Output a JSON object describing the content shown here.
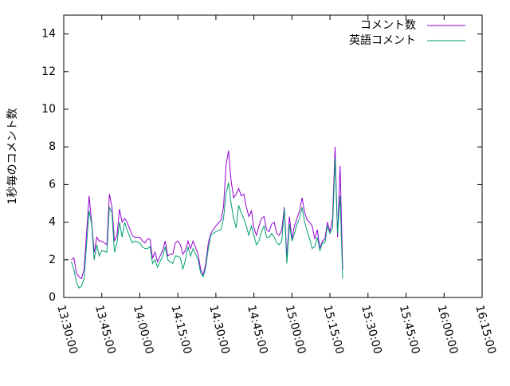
{
  "chart_data": {
    "type": "line",
    "ylabel": "1秒毎のコメント数",
    "x": [
      "13:33:00",
      "13:34:00",
      "13:35:00",
      "13:36:00",
      "13:37:00",
      "13:38:00",
      "13:40:00",
      "13:41:00",
      "13:42:00",
      "13:43:00",
      "13:44:00",
      "13:45:00",
      "13:47:00",
      "13:48:00",
      "13:49:00",
      "13:50:00",
      "13:51:00",
      "13:52:00",
      "13:53:00",
      "13:54:00",
      "13:55:00",
      "13:57:00",
      "13:58:00",
      "14:00:00",
      "14:01:00",
      "14:02:00",
      "14:03:00",
      "14:04:00",
      "14:05:00",
      "14:06:00",
      "14:07:00",
      "14:09:00",
      "14:10:00",
      "14:11:00",
      "14:12:00",
      "14:13:00",
      "14:14:00",
      "14:15:00",
      "14:16:00",
      "14:17:00",
      "14:18:00",
      "14:19:00",
      "14:20:00",
      "14:21:00",
      "14:23:00",
      "14:24:00",
      "14:25:00",
      "14:26:00",
      "14:27:00",
      "14:28:00",
      "14:29:00",
      "14:30:00",
      "14:32:00",
      "14:33:00",
      "14:34:00",
      "14:35:00",
      "14:36:00",
      "14:37:00",
      "14:38:00",
      "14:39:00",
      "14:40:00",
      "14:41:00",
      "14:42:00",
      "14:43:00",
      "14:44:00",
      "14:45:00",
      "14:46:00",
      "14:47:00",
      "14:48:00",
      "14:49:00",
      "14:50:00",
      "14:51:00",
      "14:52:00",
      "14:53:00",
      "14:54:00",
      "14:55:00",
      "14:56:00",
      "14:57:00",
      "14:58:00",
      "14:59:00",
      "15:00:00",
      "15:01:00",
      "15:02:00",
      "15:03:00",
      "15:04:00",
      "15:05:00",
      "15:06:00",
      "15:07:00",
      "15:08:00",
      "15:09:00",
      "15:10:00",
      "15:11:00",
      "15:12:00",
      "15:13:00",
      "15:14:00",
      "15:15:00",
      "15:16:00",
      "15:17:00",
      "15:18:00",
      "15:19:00",
      "15:20:00"
    ],
    "series": [
      {
        "name": "コメント数",
        "color": "#9400d3",
        "values": [
          2.0,
          2.1,
          1.3,
          1.1,
          1.0,
          1.5,
          5.4,
          4.0,
          2.4,
          3.2,
          3.0,
          3.0,
          2.8,
          5.5,
          4.8,
          3.0,
          3.3,
          4.7,
          4.0,
          4.2,
          4.0,
          3.3,
          3.2,
          3.2,
          3.0,
          2.9,
          3.1,
          3.1,
          2.1,
          2.4,
          1.9,
          2.5,
          3.0,
          2.2,
          2.3,
          2.3,
          2.9,
          3.0,
          2.8,
          2.3,
          2.5,
          3.0,
          2.6,
          3.0,
          2.3,
          1.5,
          1.2,
          1.8,
          2.9,
          3.4,
          3.6,
          3.8,
          4.1,
          4.8,
          7.0,
          7.8,
          6.2,
          5.3,
          5.5,
          5.8,
          5.4,
          5.5,
          4.8,
          4.3,
          4.6,
          3.7,
          3.3,
          3.8,
          4.2,
          4.3,
          3.6,
          3.5,
          3.9,
          4.0,
          3.4,
          3.3,
          3.6,
          4.8,
          2.1,
          4.3,
          3.1,
          3.8,
          4.2,
          4.6,
          5.3,
          4.5,
          4.1,
          4.0,
          3.8,
          3.1,
          3.6,
          2.6,
          3.0,
          3.1,
          4.0,
          3.5,
          4.2,
          8.0,
          3.2,
          7.0,
          1.5
        ]
      },
      {
        "name": "英語コメント",
        "color": "#009e73",
        "values": [
          1.9,
          1.5,
          0.8,
          0.5,
          0.6,
          1.0,
          4.6,
          3.9,
          2.0,
          2.8,
          2.2,
          2.5,
          2.4,
          4.8,
          4.5,
          2.4,
          2.9,
          4.0,
          3.2,
          4.0,
          3.6,
          2.9,
          3.0,
          2.9,
          2.7,
          2.6,
          2.6,
          2.7,
          1.8,
          2.0,
          1.6,
          2.2,
          2.7,
          2.0,
          1.9,
          1.8,
          2.2,
          2.2,
          2.1,
          1.5,
          2.0,
          2.7,
          2.2,
          2.6,
          2.0,
          1.3,
          1.1,
          1.6,
          2.6,
          3.3,
          3.4,
          3.5,
          3.6,
          4.2,
          5.5,
          6.1,
          5.0,
          4.2,
          3.7,
          4.9,
          4.5,
          4.2,
          3.8,
          3.3,
          3.8,
          3.3,
          2.8,
          3.0,
          3.5,
          3.8,
          3.2,
          3.2,
          3.4,
          3.2,
          2.9,
          2.8,
          3.0,
          4.7,
          1.8,
          3.9,
          3.0,
          3.4,
          3.9,
          4.2,
          4.8,
          4.0,
          3.5,
          3.1,
          2.6,
          2.7,
          3.2,
          2.5,
          2.9,
          2.9,
          3.8,
          3.4,
          3.7,
          7.4,
          3.4,
          5.4,
          1.0
        ]
      }
    ],
    "xlim": [
      "13:30:00",
      "16:15:00"
    ],
    "xticks": [
      "13:30:00",
      "13:45:00",
      "14:00:00",
      "14:15:00",
      "14:30:00",
      "14:45:00",
      "15:00:00",
      "15:15:00",
      "15:30:00",
      "15:45:00",
      "16:00:00",
      "16:15:00"
    ],
    "ylim": [
      0,
      15
    ],
    "yticks": [
      0,
      2,
      4,
      6,
      8,
      10,
      12,
      14
    ],
    "legend": "top-right",
    "grid": false
  }
}
